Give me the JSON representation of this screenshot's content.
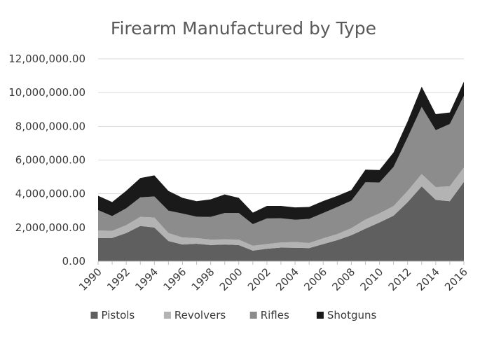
{
  "chart_data": {
    "type": "area",
    "stacked": true,
    "title": "Firearm Manufactured by Type",
    "xlabel": "",
    "ylabel": "",
    "ylim": [
      0,
      12000000
    ],
    "y_ticks": [
      "0.00",
      "2,000,000.00",
      "4,000,000.00",
      "6,000,000.00",
      "8,000,000.00",
      "10,000,000.00",
      "12,000,000.00"
    ],
    "x": [
      1990,
      1991,
      1992,
      1993,
      1994,
      1995,
      1996,
      1997,
      1998,
      1999,
      2000,
      2001,
      2002,
      2003,
      2004,
      2005,
      2006,
      2007,
      2008,
      2009,
      2010,
      2011,
      2012,
      2013,
      2014,
      2015,
      2016
    ],
    "x_tick_labels": [
      "1990",
      "1992",
      "1994",
      "1996",
      "1998",
      "2000",
      "2002",
      "2004",
      "2006",
      "2008",
      "2010",
      "2012",
      "2014",
      "2016"
    ],
    "legend_position": "bottom",
    "series": [
      {
        "name": "Pistols",
        "color": "#5f5f5f",
        "values": [
          1370000,
          1380000,
          1670000,
          2090000,
          2000000,
          1200000,
          990000,
          1040000,
          960000,
          990000,
          960000,
          630000,
          740000,
          810000,
          800000,
          780000,
          1020000,
          1250000,
          1540000,
          1930000,
          2300000,
          2700000,
          3500000,
          4440000,
          3640000,
          3560000,
          4700000
        ]
      },
      {
        "name": "Revolvers",
        "color": "#b3b3b3",
        "values": [
          450000,
          420000,
          470000,
          540000,
          590000,
          470000,
          420000,
          330000,
          320000,
          310000,
          320000,
          290000,
          280000,
          300000,
          340000,
          300000,
          340000,
          360000,
          420000,
          540000,
          540000,
          570000,
          670000,
          730000,
          750000,
          890000,
          860000
        ]
      },
      {
        "name": "Rifles",
        "color": "#8c8c8c",
        "values": [
          1210000,
          880000,
          1000000,
          1160000,
          1250000,
          1330000,
          1420000,
          1270000,
          1350000,
          1560000,
          1580000,
          1280000,
          1520000,
          1440000,
          1320000,
          1430000,
          1500000,
          1610000,
          1630000,
          2210000,
          1830000,
          2320000,
          3170000,
          3980000,
          3380000,
          3690000,
          4240000
        ]
      },
      {
        "name": "Shotguns",
        "color": "#1a1a1a",
        "values": [
          850000,
          830000,
          1040000,
          1140000,
          1250000,
          1170000,
          930000,
          920000,
          1040000,
          1100000,
          900000,
          680000,
          740000,
          730000,
          730000,
          710000,
          710000,
          650000,
          630000,
          750000,
          740000,
          860000,
          950000,
          1200000,
          950000,
          680000,
          850000
        ]
      }
    ]
  }
}
